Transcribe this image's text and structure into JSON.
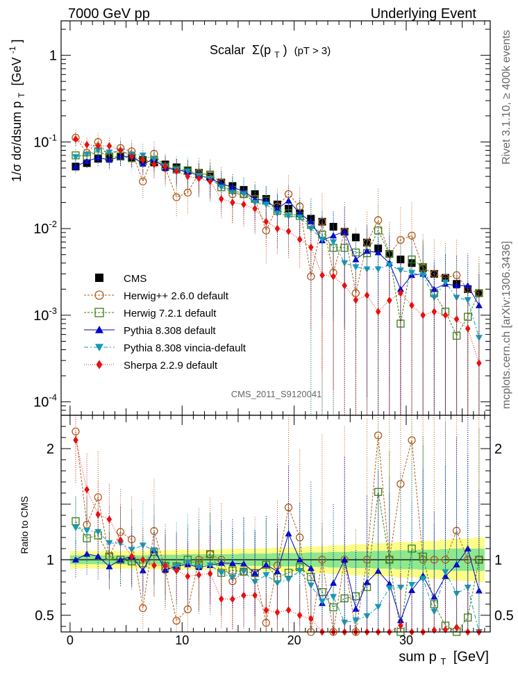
{
  "header": {
    "left": "7000 GeV pp",
    "right": "Underlying Event",
    "rivet": "Rivet 3.1.10, ≥ 400k events",
    "mcplots": "mcplots.cern.ch [arXiv:1306.3436]",
    "analysis": "CMS_2011_S9120041"
  },
  "chart_data": [
    {
      "type": "scatter",
      "title_prefix": "Scalar",
      "title_sigma": "Σ(p",
      "title_sub": "T",
      "title_close": ")",
      "title_cut": "(pT >  3)",
      "ylabel": "1/σ dσ/dsum p",
      "ylabel_sub": "T",
      "ylabel_unit": "[GeV",
      "ylabel_sup": "-1",
      "ylabel_close": "]",
      "yscale": "log",
      "ylim": [
        7e-05,
        2.5
      ],
      "xlim": [
        -0.8,
        37.5
      ],
      "ytick_labels": [
        {
          "v": 1,
          "base": "1",
          "exp": ""
        },
        {
          "v": 0.1,
          "base": "10",
          "exp": "-1"
        },
        {
          "v": 0.01,
          "base": "10",
          "exp": "-2"
        },
        {
          "v": 0.001,
          "base": "10",
          "exp": "-3"
        },
        {
          "v": 0.0001,
          "base": "10",
          "exp": "-4"
        }
      ],
      "legend_placement": "left",
      "x": [
        0.5,
        1.5,
        2.5,
        3.5,
        4.5,
        5.5,
        6.5,
        7.5,
        8.5,
        9.5,
        10.5,
        11.5,
        12.5,
        13.5,
        14.5,
        15.5,
        16.5,
        17.5,
        18.5,
        19.5,
        20.5,
        21.5,
        22.5,
        23.5,
        24.5,
        25.5,
        26.5,
        27.5,
        28.5,
        29.5,
        30.5,
        31.5,
        32.5,
        33.5,
        34.5,
        35.5,
        36.5
      ],
      "series": [
        {
          "name": "CMS",
          "color": "#000000",
          "marker": "square",
          "values": [
            0.052,
            0.057,
            0.064,
            0.066,
            0.068,
            0.066,
            0.062,
            0.058,
            0.055,
            0.051,
            0.047,
            0.044,
            0.04,
            0.034,
            0.031,
            0.028,
            0.025,
            0.022,
            0.019,
            0.017,
            0.015,
            0.013,
            0.012,
            0.0105,
            0.0092,
            0.0079,
            0.0069,
            0.0059,
            0.0051,
            0.0044,
            0.004,
            0.0035,
            0.003,
            0.0027,
            0.0023,
            0.002,
            0.0018
          ]
        },
        {
          "name": "Herwig++ 2.6.0 default",
          "color": "#b05a18",
          "marker": "open-circle",
          "line": "3,2",
          "values": [
            0.112,
            0.075,
            0.1,
            0.068,
            0.085,
            0.078,
            0.035,
            0.073,
            0.05,
            0.023,
            0.026,
            0.044,
            0.042,
            0.034,
            0.025,
            0.025,
            0.022,
            0.0095,
            0.018,
            0.025,
            0.018,
            0.0028,
            0.012,
            0.0031,
            0.0092,
            0.0018,
            0.0069,
            0.0125,
            0.0051,
            0.0074,
            0.0083,
            0.0035,
            0.003,
            0.0027,
            0.0029,
            0.002,
            0.0018
          ]
        },
        {
          "name": "Herwig 7.2.1 default",
          "color": "#3a7d12",
          "marker": "open-square",
          "line": "3,2",
          "values": [
            0.07,
            0.068,
            0.078,
            0.068,
            0.068,
            0.065,
            0.06,
            0.062,
            0.052,
            0.048,
            0.047,
            0.042,
            0.042,
            0.03,
            0.028,
            0.025,
            0.022,
            0.021,
            0.016,
            0.015,
            0.014,
            0.011,
            0.0085,
            0.006,
            0.006,
            0.0053,
            0.0052,
            0.0095,
            0.0051,
            0.0008,
            0.0044,
            0.0036,
            0.0018,
            0.0011,
            0.00058,
            0.00096,
            0.0018
          ]
        },
        {
          "name": "Pythia 8.308 default",
          "color": "#0000c8",
          "marker": "triangle-up",
          "line": "",
          "values": [
            0.052,
            0.06,
            0.066,
            0.062,
            0.068,
            0.068,
            0.056,
            0.063,
            0.05,
            0.048,
            0.045,
            0.041,
            0.038,
            0.033,
            0.03,
            0.027,
            0.022,
            0.021,
            0.017,
            0.021,
            0.015,
            0.012,
            0.0073,
            0.0083,
            0.0092,
            0.0044,
            0.0055,
            0.0053,
            0.004,
            0.002,
            0.0029,
            0.003,
            0.002,
            0.0023,
            0.0022,
            0.0022,
            0.0013
          ]
        },
        {
          "name": "Pythia 8.308 vincia-default",
          "color": "#1499b8",
          "marker": "triangle-down",
          "line": "6,3,2,3",
          "values": [
            0.067,
            0.072,
            0.08,
            0.076,
            0.078,
            0.072,
            0.07,
            0.063,
            0.052,
            0.048,
            0.046,
            0.041,
            0.038,
            0.03,
            0.026,
            0.025,
            0.02,
            0.019,
            0.015,
            0.014,
            0.0135,
            0.01,
            0.0075,
            0.007,
            0.004,
            0.0036,
            0.0034,
            0.0034,
            0.0038,
            0.0033,
            0.0031,
            0.0029,
            0.0016,
            0.0024,
            0.0016,
            0.0015,
            0.00055
          ]
        },
        {
          "name": "Sherpa 2.2.9 default",
          "color": "#e81010",
          "marker": "diamond",
          "line": "1,2",
          "values": [
            0.108,
            0.093,
            0.09,
            0.09,
            0.08,
            0.068,
            0.062,
            0.055,
            0.052,
            0.046,
            0.04,
            0.038,
            0.035,
            0.022,
            0.02,
            0.019,
            0.017,
            0.012,
            0.01,
            0.0093,
            0.0075,
            0.0061,
            0.0029,
            0.0028,
            0.0022,
            0.0015,
            0.0017,
            0.0011,
            0.00148,
            0.0018,
            0.0013,
            0.001,
            0.0011,
            0.001,
            0.0009,
            0.0007,
            0.00028
          ]
        }
      ]
    },
    {
      "type": "scatter",
      "ylabel": "Ratio to CMS",
      "xlabel": "sum p",
      "xlabel_sub": "T",
      "xlabel_unit": "[GeV]",
      "ylim": [
        0.35,
        2.3
      ],
      "xlim": [
        -0.8,
        37.5
      ],
      "yticks": [
        0.5,
        1,
        2
      ],
      "ytick_labels": [
        "0.5",
        "1",
        "2"
      ],
      "xticks": [
        0,
        10,
        20,
        30
      ],
      "xtick_labels": [
        "0",
        "10",
        "20",
        "30"
      ],
      "band_inner_halfwidth": [
        0.04,
        0.04,
        0.04,
        0.04,
        0.04,
        0.04,
        0.04,
        0.045,
        0.045,
        0.045,
        0.05,
        0.05,
        0.05,
        0.05,
        0.05,
        0.055,
        0.055,
        0.055,
        0.06,
        0.06,
        0.06,
        0.065,
        0.065,
        0.07,
        0.07,
        0.075,
        0.075,
        0.08,
        0.08,
        0.085,
        0.085,
        0.09,
        0.09,
        0.095,
        0.1,
        0.1,
        0.1
      ],
      "band_outer_halfwidth": [
        0.08,
        0.08,
        0.08,
        0.08,
        0.08,
        0.08,
        0.08,
        0.085,
        0.085,
        0.09,
        0.09,
        0.09,
        0.09,
        0.095,
        0.1,
        0.1,
        0.1,
        0.105,
        0.11,
        0.11,
        0.11,
        0.12,
        0.12,
        0.13,
        0.13,
        0.14,
        0.14,
        0.15,
        0.15,
        0.16,
        0.16,
        0.17,
        0.17,
        0.18,
        0.19,
        0.19,
        0.2
      ]
    }
  ]
}
